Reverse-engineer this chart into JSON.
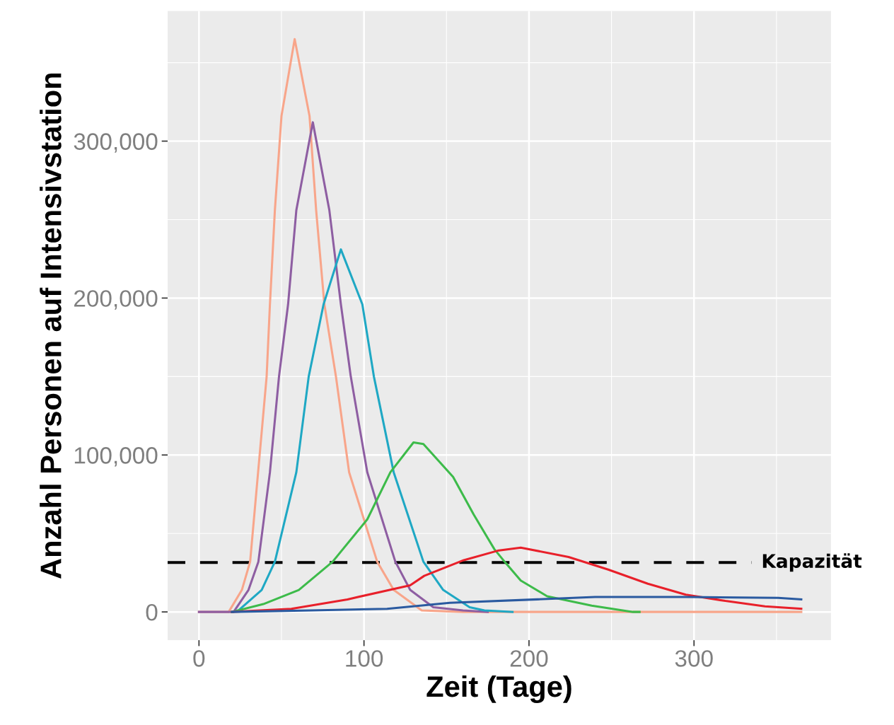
{
  "chart_data": {
    "type": "line",
    "xlabel": "Zeit (Tage)",
    "ylabel": "Anzahl Personen auf Intensivstation",
    "xlim": [
      -19,
      383
    ],
    "ylim": [
      -18000,
      383000
    ],
    "xticks": [
      0,
      100,
      200,
      300
    ],
    "yticks": [
      0,
      {
        "value": 100000,
        "label": "100,000"
      },
      {
        "value": 200000,
        "label": "200,000"
      },
      {
        "value": 300000,
        "label": "300,000"
      }
    ],
    "grid": true,
    "marker": "none",
    "line_style": "solid",
    "ref_lines": [
      {
        "axis": "y",
        "value": 31500,
        "label": "Kapazität",
        "color": "#000000",
        "line_style": "dashed"
      }
    ],
    "series": [
      {
        "color": "#f8a58a",
        "x": [
          0,
          18,
          26,
          31,
          41,
          43,
          46,
          50,
          58,
          67,
          71,
          76,
          83,
          91,
          108,
          118,
          135,
          160,
          365
        ],
        "values": [
          0,
          0,
          14000,
          32000,
          150000,
          196000,
          256000,
          316000,
          365000,
          316000,
          256000,
          196000,
          150000,
          89000,
          32000,
          14000,
          1000,
          0,
          0
        ]
      },
      {
        "color": "#8e5ea2",
        "x": [
          0,
          21,
          30,
          36,
          43,
          48.5,
          54,
          59,
          69,
          79,
          86,
          92,
          102,
          119,
          128,
          142,
          160,
          175
        ],
        "values": [
          0,
          0,
          14000,
          32000,
          89000,
          150000,
          196000,
          256000,
          312000,
          256000,
          196000,
          150000,
          89000,
          32000,
          14000,
          3000,
          1000,
          0
        ]
      },
      {
        "color": "#1fa8c4",
        "x": [
          20,
          24,
          38,
          46,
          59,
          66.5,
          75.5,
          86,
          99,
          106,
          118,
          136,
          148,
          164,
          173,
          190
        ],
        "values": [
          0,
          1000,
          14000,
          32000,
          89000,
          150000,
          196000,
          231000,
          196000,
          150000,
          89000,
          32000,
          14000,
          3000,
          1000,
          0
        ]
      },
      {
        "color": "#3dbb4a",
        "x": [
          20,
          39,
          60.5,
          81,
          102,
          116,
          130,
          136,
          154,
          166.5,
          179,
          186,
          195,
          211,
          238,
          263,
          267
        ],
        "values": [
          0,
          5000,
          14000,
          32000,
          59000,
          89000,
          108000,
          107000,
          86000,
          62000,
          40000,
          31000,
          20000,
          10000,
          4000,
          0,
          0
        ]
      },
      {
        "color": "#e8202a",
        "x": [
          20,
          56,
          90,
          128,
          136.5,
          160.5,
          181,
          195,
          224,
          248,
          272,
          295,
          319,
          343,
          365
        ],
        "values": [
          0,
          2000,
          8000,
          17000,
          23000,
          33000,
          39000,
          41000,
          35000,
          27000,
          18000,
          11000,
          7000,
          3600,
          2000
        ]
      },
      {
        "color": "#2a5aa0",
        "x": [
          20,
          68,
          114,
          152,
          205,
          240,
          295,
          351,
          365
        ],
        "values": [
          0,
          1000,
          2000,
          5800,
          8000,
          9500,
          9500,
          9000,
          8000
        ]
      }
    ]
  }
}
